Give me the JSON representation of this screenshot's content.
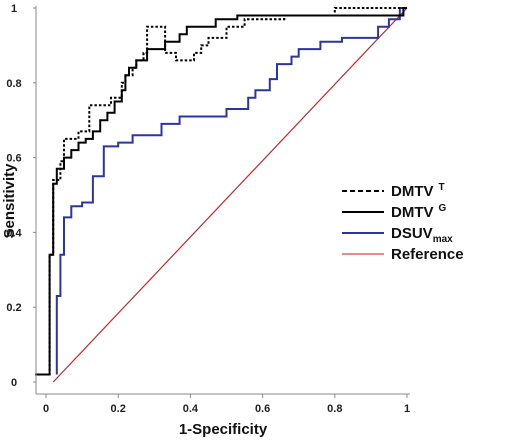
{
  "chart_data": {
    "type": "line",
    "title": "",
    "xlabel": "1-Specificity",
    "ylabel": "Sensitivity",
    "xlim": [
      0,
      1
    ],
    "ylim": [
      0,
      1
    ],
    "x_ticks": [
      "0",
      "0.2",
      "0.4",
      "0.6",
      "0.8",
      "1"
    ],
    "y_ticks": [
      "0",
      "0.2",
      "0.4",
      "0.6",
      "0.8",
      "1"
    ],
    "grid": false,
    "legend_position": "right",
    "series": [
      {
        "name": "DMTV",
        "superscript": "T",
        "color": "#000000",
        "style": "dotted",
        "points": [
          [
            -0.03,
            0.02
          ],
          [
            0.01,
            0.02
          ],
          [
            0.01,
            0.34
          ],
          [
            0.02,
            0.34
          ],
          [
            0.02,
            0.54
          ],
          [
            0.04,
            0.54
          ],
          [
            0.04,
            0.59
          ],
          [
            0.05,
            0.59
          ],
          [
            0.05,
            0.65
          ],
          [
            0.09,
            0.65
          ],
          [
            0.09,
            0.67
          ],
          [
            0.12,
            0.67
          ],
          [
            0.12,
            0.74
          ],
          [
            0.18,
            0.74
          ],
          [
            0.18,
            0.76
          ],
          [
            0.21,
            0.76
          ],
          [
            0.21,
            0.8
          ],
          [
            0.22,
            0.8
          ],
          [
            0.22,
            0.82
          ],
          [
            0.24,
            0.82
          ],
          [
            0.24,
            0.84
          ],
          [
            0.25,
            0.84
          ],
          [
            0.25,
            0.86
          ],
          [
            0.27,
            0.86
          ],
          [
            0.27,
            0.88
          ],
          [
            0.28,
            0.88
          ],
          [
            0.28,
            0.95
          ],
          [
            0.33,
            0.95
          ],
          [
            0.33,
            0.88
          ],
          [
            0.36,
            0.88
          ],
          [
            0.36,
            0.86
          ],
          [
            0.41,
            0.86
          ],
          [
            0.41,
            0.88
          ],
          [
            0.43,
            0.88
          ],
          [
            0.43,
            0.9
          ],
          [
            0.45,
            0.9
          ],
          [
            0.45,
            0.92
          ],
          [
            0.5,
            0.92
          ],
          [
            0.5,
            0.95
          ],
          [
            0.55,
            0.95
          ],
          [
            0.55,
            0.97
          ],
          [
            0.66,
            0.97
          ],
          [
            0.66,
            0.98
          ],
          [
            0.8,
            0.98
          ],
          [
            0.8,
            1.0
          ],
          [
            1.0,
            1.0
          ]
        ]
      },
      {
        "name": "DMTV",
        "superscript": "G",
        "color": "#000000",
        "style": "solid",
        "points": [
          [
            -0.03,
            0.02
          ],
          [
            0.01,
            0.02
          ],
          [
            0.01,
            0.34
          ],
          [
            0.02,
            0.34
          ],
          [
            0.02,
            0.53
          ],
          [
            0.03,
            0.53
          ],
          [
            0.03,
            0.57
          ],
          [
            0.05,
            0.57
          ],
          [
            0.05,
            0.6
          ],
          [
            0.07,
            0.6
          ],
          [
            0.07,
            0.62
          ],
          [
            0.09,
            0.62
          ],
          [
            0.09,
            0.64
          ],
          [
            0.11,
            0.64
          ],
          [
            0.11,
            0.65
          ],
          [
            0.13,
            0.65
          ],
          [
            0.13,
            0.67
          ],
          [
            0.15,
            0.67
          ],
          [
            0.15,
            0.7
          ],
          [
            0.17,
            0.7
          ],
          [
            0.17,
            0.72
          ],
          [
            0.19,
            0.72
          ],
          [
            0.19,
            0.75
          ],
          [
            0.21,
            0.75
          ],
          [
            0.21,
            0.78
          ],
          [
            0.22,
            0.78
          ],
          [
            0.22,
            0.82
          ],
          [
            0.23,
            0.82
          ],
          [
            0.23,
            0.84
          ],
          [
            0.25,
            0.84
          ],
          [
            0.25,
            0.86
          ],
          [
            0.28,
            0.86
          ],
          [
            0.28,
            0.89
          ],
          [
            0.33,
            0.89
          ],
          [
            0.33,
            0.91
          ],
          [
            0.37,
            0.91
          ],
          [
            0.37,
            0.93
          ],
          [
            0.39,
            0.93
          ],
          [
            0.39,
            0.95
          ],
          [
            0.47,
            0.95
          ],
          [
            0.47,
            0.97
          ],
          [
            0.53,
            0.97
          ],
          [
            0.53,
            0.98
          ],
          [
            0.99,
            0.98
          ],
          [
            0.99,
            1.0
          ],
          [
            1.0,
            1.0
          ]
        ]
      },
      {
        "name": "DSUV",
        "subscript": "max",
        "color": "#2b35a0",
        "style": "solid",
        "points": [
          [
            0.03,
            0.02
          ],
          [
            0.03,
            0.23
          ],
          [
            0.04,
            0.23
          ],
          [
            0.04,
            0.34
          ],
          [
            0.05,
            0.34
          ],
          [
            0.05,
            0.44
          ],
          [
            0.07,
            0.44
          ],
          [
            0.07,
            0.47
          ],
          [
            0.1,
            0.47
          ],
          [
            0.1,
            0.48
          ],
          [
            0.13,
            0.48
          ],
          [
            0.13,
            0.55
          ],
          [
            0.16,
            0.55
          ],
          [
            0.16,
            0.63
          ],
          [
            0.2,
            0.63
          ],
          [
            0.2,
            0.64
          ],
          [
            0.24,
            0.64
          ],
          [
            0.24,
            0.66
          ],
          [
            0.32,
            0.66
          ],
          [
            0.32,
            0.69
          ],
          [
            0.37,
            0.69
          ],
          [
            0.37,
            0.71
          ],
          [
            0.5,
            0.71
          ],
          [
            0.5,
            0.73
          ],
          [
            0.56,
            0.73
          ],
          [
            0.56,
            0.76
          ],
          [
            0.58,
            0.76
          ],
          [
            0.58,
            0.78
          ],
          [
            0.62,
            0.78
          ],
          [
            0.62,
            0.81
          ],
          [
            0.64,
            0.81
          ],
          [
            0.64,
            0.85
          ],
          [
            0.68,
            0.85
          ],
          [
            0.68,
            0.87
          ],
          [
            0.7,
            0.87
          ],
          [
            0.7,
            0.89
          ],
          [
            0.76,
            0.89
          ],
          [
            0.76,
            0.91
          ],
          [
            0.82,
            0.91
          ],
          [
            0.82,
            0.92
          ],
          [
            0.92,
            0.92
          ],
          [
            0.92,
            0.95
          ],
          [
            0.95,
            0.95
          ],
          [
            0.95,
            0.97
          ],
          [
            0.98,
            0.97
          ],
          [
            0.98,
            1.0
          ],
          [
            1.0,
            1.0
          ]
        ]
      },
      {
        "name": "Reference",
        "color": "#c62828",
        "legend_color": "#e88a8a",
        "style": "solid",
        "points": [
          [
            0.02,
            0.0
          ],
          [
            1.0,
            1.0
          ]
        ]
      }
    ]
  }
}
